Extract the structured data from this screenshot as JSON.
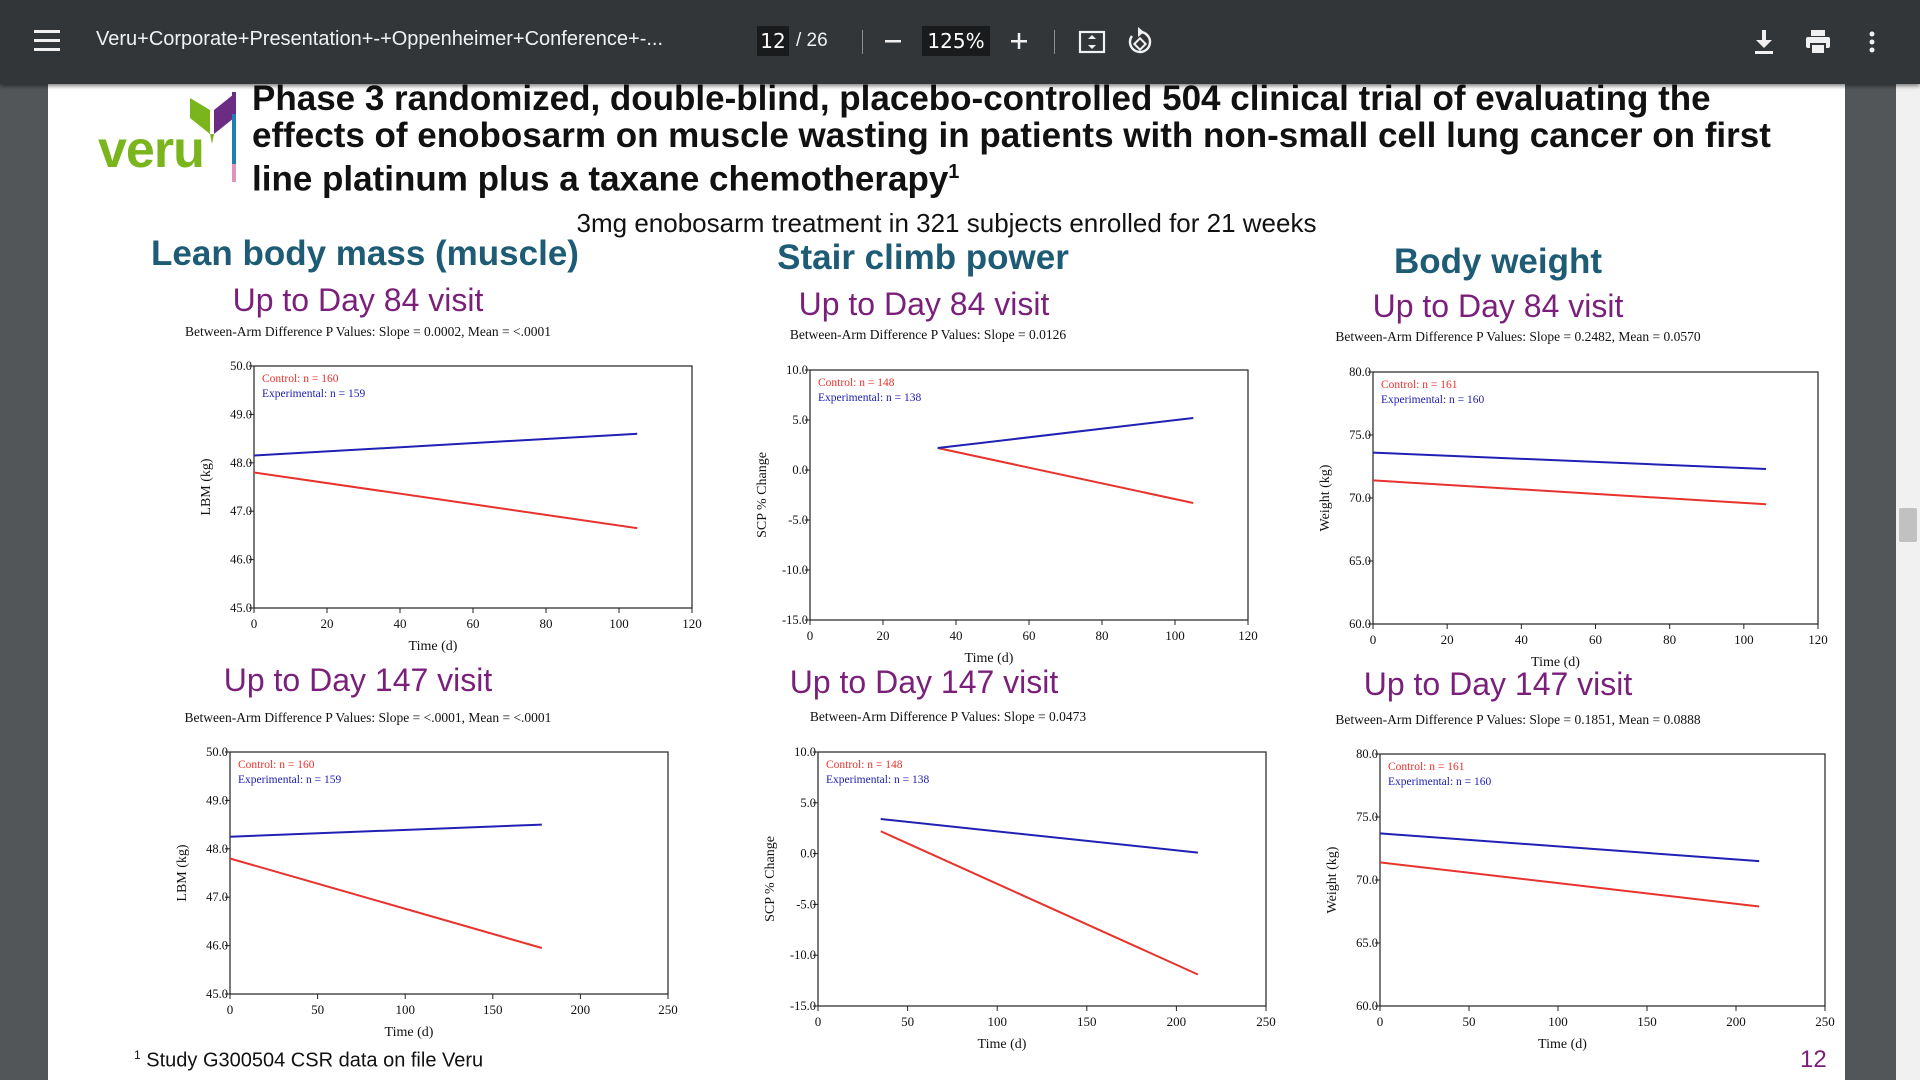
{
  "viewer": {
    "doc_title": "Veru+Corporate+Presentation+-+Oppenheimer+Conference+-...",
    "current_page": "12",
    "total_pages": "/ 26",
    "zoom": "125%",
    "icons": [
      "menu-icon",
      "zoom-out-icon",
      "zoom-in-icon",
      "fit-page-icon",
      "rotate-icon",
      "download-icon",
      "print-icon",
      "more-vert-icon"
    ]
  },
  "slide": {
    "logo_text": "veru",
    "title_line1": "Phase 3 randomized, double-blind, placebo-controlled 504 clinical trial of evaluating the",
    "title_line2": "effects of enobosarm on muscle wasting in patients with non-small cell lung cancer on first",
    "title_line3": "line platinum plus a taxane chemotherapy",
    "title_sup": "1",
    "subtitle": "3mg enobosarm treatment in 321 subjects enrolled for 21 weeks",
    "columns": [
      "Lean body mass (muscle)",
      "Stair climb power",
      "Body weight"
    ],
    "visit_84": "Up to Day 84 visit",
    "visit_147": "Up to Day 147 visit",
    "footnote_sup": "1",
    "footnote": "Study G300504 CSR data on file Veru",
    "page_number": "12",
    "colors": {
      "control": "#e8322d",
      "experimental": "#2020b4",
      "heading": "#1e5b75",
      "visit": "#7a1f7a",
      "logo_green": "#7ab51d",
      "logo_purple": "#6b2d84"
    }
  },
  "chart_data": [
    {
      "type": "line",
      "title": "Between-Arm Difference P Values: Slope = 0.0002, Mean = <.0001",
      "xlabel": "Time (d)",
      "ylabel": "LBM (kg)",
      "xlim": [
        0,
        120
      ],
      "ylim": [
        45,
        50
      ],
      "xticks": [
        0,
        20,
        40,
        60,
        80,
        100,
        120
      ],
      "yticks": [
        45,
        46,
        47,
        48,
        49,
        50
      ],
      "ytick_labels": [
        "45.0",
        "46.0",
        "47.0",
        "48.0",
        "49.0",
        "50.0"
      ],
      "legend": [
        "Control: n = 160",
        "Experimental: n = 159"
      ],
      "series": [
        {
          "name": "Control",
          "x": [
            0,
            105
          ],
          "y": [
            47.8,
            46.65
          ]
        },
        {
          "name": "Experimental",
          "x": [
            0,
            105
          ],
          "y": [
            48.15,
            48.6
          ]
        }
      ]
    },
    {
      "type": "line",
      "title": "Between-Arm Difference P Values: Slope = 0.0126",
      "xlabel": "Time (d)",
      "ylabel": "SCP % Change",
      "xlim": [
        0,
        120
      ],
      "ylim": [
        -15,
        10
      ],
      "xticks": [
        0,
        20,
        40,
        60,
        80,
        100,
        120
      ],
      "yticks": [
        -15,
        -10,
        -5,
        0,
        5,
        10
      ],
      "ytick_labels": [
        "-15.0",
        "-10.0",
        "-5.0",
        "0.0",
        "5.0",
        "10.0"
      ],
      "legend": [
        "Control: n = 148",
        "Experimental: n = 138"
      ],
      "series": [
        {
          "name": "Control",
          "x": [
            35,
            105
          ],
          "y": [
            2.2,
            -3.3
          ]
        },
        {
          "name": "Experimental",
          "x": [
            35,
            105
          ],
          "y": [
            2.2,
            5.2
          ]
        }
      ]
    },
    {
      "type": "line",
      "title": "Between-Arm Difference P Values: Slope = 0.2482, Mean = 0.0570",
      "xlabel": "Time (d)",
      "ylabel": "Weight (kg)",
      "xlim": [
        0,
        120
      ],
      "ylim": [
        60,
        80
      ],
      "xticks": [
        0,
        20,
        40,
        60,
        80,
        100,
        120
      ],
      "yticks": [
        60,
        65,
        70,
        75,
        80
      ],
      "ytick_labels": [
        "60.0",
        "65.0",
        "70.0",
        "75.0",
        "80.0"
      ],
      "legend": [
        "Control: n = 161",
        "Experimental: n = 160"
      ],
      "series": [
        {
          "name": "Control",
          "x": [
            0,
            106
          ],
          "y": [
            71.4,
            69.5
          ]
        },
        {
          "name": "Experimental",
          "x": [
            0,
            106
          ],
          "y": [
            73.6,
            72.3
          ]
        }
      ]
    },
    {
      "type": "line",
      "title": "Between-Arm Difference P Values: Slope = <.0001, Mean = <.0001",
      "xlabel": "Time (d)",
      "ylabel": "LBM (kg)",
      "xlim": [
        0,
        250
      ],
      "ylim": [
        45,
        50
      ],
      "xticks": [
        0,
        50,
        100,
        150,
        200,
        250
      ],
      "yticks": [
        45,
        46,
        47,
        48,
        49,
        50
      ],
      "ytick_labels": [
        "45.0",
        "46.0",
        "47.0",
        "48.0",
        "49.0",
        "50.0"
      ],
      "legend": [
        "Control: n = 160",
        "Experimental: n = 159"
      ],
      "series": [
        {
          "name": "Control",
          "x": [
            0,
            178
          ],
          "y": [
            47.8,
            45.95
          ]
        },
        {
          "name": "Experimental",
          "x": [
            0,
            178
          ],
          "y": [
            48.25,
            48.5
          ]
        }
      ]
    },
    {
      "type": "line",
      "title": "Between-Arm Difference P Values: Slope = 0.0473",
      "xlabel": "Time (d)",
      "ylabel": "SCP % Change",
      "xlim": [
        0,
        250
      ],
      "ylim": [
        -15,
        10
      ],
      "xticks": [
        0,
        50,
        100,
        150,
        200,
        250
      ],
      "yticks": [
        -15,
        -10,
        -5,
        0,
        5,
        10
      ],
      "ytick_labels": [
        "-15.0",
        "-10.0",
        "-5.0",
        "0.0",
        "5.0",
        "10.0"
      ],
      "legend": [
        "Control: n = 148",
        "Experimental: n = 138"
      ],
      "series": [
        {
          "name": "Control",
          "x": [
            35,
            212
          ],
          "y": [
            2.2,
            -11.9
          ]
        },
        {
          "name": "Experimental",
          "x": [
            35,
            212
          ],
          "y": [
            3.4,
            0.1
          ]
        }
      ]
    },
    {
      "type": "line",
      "title": "Between-Arm Difference P Values: Slope = 0.1851, Mean = 0.0888",
      "xlabel": "Time (d)",
      "ylabel": "Weight (kg)",
      "xlim": [
        0,
        250
      ],
      "ylim": [
        60,
        80
      ],
      "xticks": [
        0,
        50,
        100,
        150,
        200,
        250
      ],
      "yticks": [
        60,
        65,
        70,
        75,
        80
      ],
      "ytick_labels": [
        "60.0",
        "65.0",
        "70.0",
        "75.0",
        "80.0"
      ],
      "legend": [
        "Control: n = 161",
        "Experimental: n = 160"
      ],
      "series": [
        {
          "name": "Control",
          "x": [
            0,
            213
          ],
          "y": [
            71.4,
            67.9
          ]
        },
        {
          "name": "Experimental",
          "x": [
            0,
            213
          ],
          "y": [
            73.7,
            71.5
          ]
        }
      ]
    }
  ]
}
